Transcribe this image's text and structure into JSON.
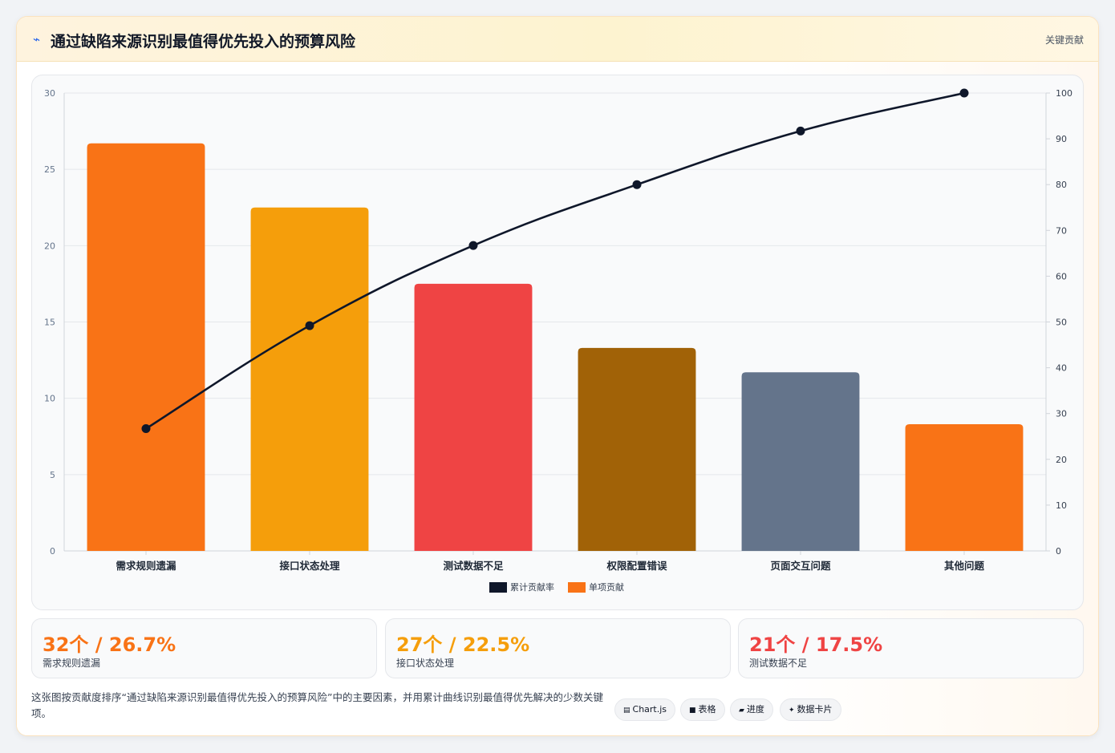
{
  "header": {
    "icon": "lightning-icon",
    "title": "通过缺陷来源识别最值得优先投入的预算风险",
    "tag": "关键贡献"
  },
  "chart_data": {
    "type": "bar",
    "categories": [
      "需求规则遗漏",
      "接口状态处理",
      "测试数据不足",
      "权限配置错误",
      "页面交互问题",
      "其他问题"
    ],
    "series": [
      {
        "name": "单项贡献",
        "type": "bar",
        "axis": "left",
        "values": [
          26.7,
          22.5,
          17.5,
          13.3,
          11.7,
          8.3
        ],
        "colors": [
          "#f97316",
          "#f59e0b",
          "#ef4444",
          "#a16207",
          "#64748b",
          "#f97316"
        ]
      },
      {
        "name": "累计贡献率",
        "type": "line",
        "axis": "right",
        "values": [
          26.7,
          49.2,
          66.7,
          80.0,
          91.7,
          100.0
        ],
        "color": "#0f172a"
      }
    ],
    "y_left": {
      "range": [
        0,
        30
      ],
      "ticks": [
        0,
        5,
        10,
        15,
        20,
        25,
        30
      ]
    },
    "y_right": {
      "range": [
        0,
        100
      ],
      "ticks": [
        0,
        10,
        20,
        30,
        40,
        50,
        60,
        70,
        80,
        90,
        100
      ]
    },
    "legend": {
      "position": "bottom",
      "order": [
        "累计贡献率",
        "单项贡献"
      ]
    },
    "grid": true
  },
  "stats": [
    {
      "value": "32个 / 26.7%",
      "label": "需求规则遗漏",
      "color": "#f97316"
    },
    {
      "value": "27个 / 22.5%",
      "label": "接口状态处理",
      "color": "#f59e0b"
    },
    {
      "value": "21个 / 17.5%",
      "label": "测试数据不足",
      "color": "#ef4444"
    }
  ],
  "description": "这张图按贡献度排序“通过缺陷来源识别最值得优先投入的预算风险”中的主要因素，并用累计曲线识别最值得优先解决的少数关键项。",
  "chips": [
    {
      "icon": "chart-icon",
      "glyph": "▤",
      "label": "Chart.js"
    },
    {
      "icon": "table-icon",
      "glyph": "■",
      "label": "表格"
    },
    {
      "icon": "progress-icon",
      "glyph": "▰",
      "label": "进度"
    },
    {
      "icon": "card-icon",
      "glyph": "✦",
      "label": "数据卡片"
    }
  ]
}
